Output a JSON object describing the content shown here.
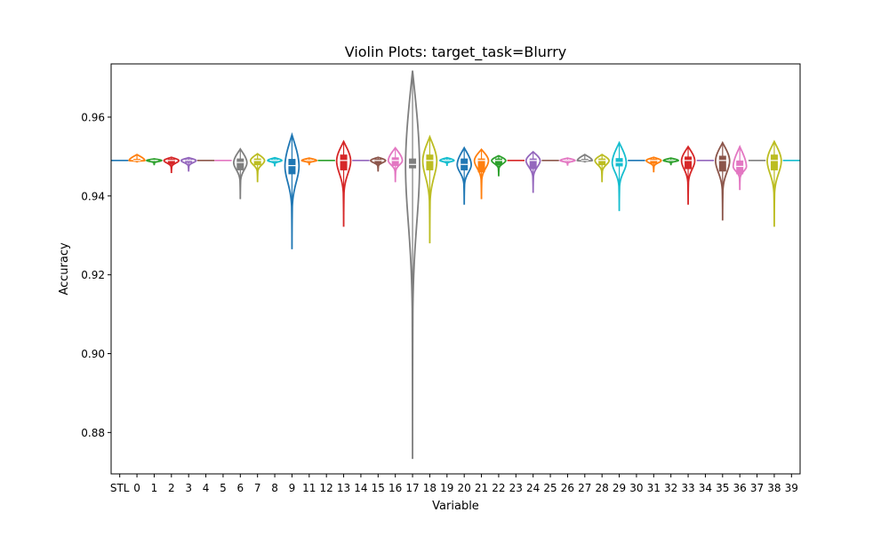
{
  "chart_data": {
    "type": "violin",
    "title": "Violin Plots: target_task=Blurry",
    "xlabel": "Variable",
    "ylabel": "Accuracy",
    "ylim": [
      0.8695,
      0.9735
    ],
    "yticks": [
      0.88,
      0.9,
      0.92,
      0.94,
      0.96
    ],
    "ytick_labels": [
      "0.88",
      "0.90",
      "0.92",
      "0.94",
      "0.96"
    ],
    "grid": false,
    "palette": [
      "#1f77b4",
      "#ff7f0e",
      "#2ca02c",
      "#d62728",
      "#9467bd",
      "#8c564b",
      "#e377c2",
      "#7f7f7f",
      "#bcbd22",
      "#17becf"
    ],
    "categories": [
      "STL",
      "0",
      "1",
      "2",
      "3",
      "4",
      "5",
      "6",
      "7",
      "8",
      "9",
      "11",
      "12",
      "13",
      "14",
      "15",
      "16",
      "17",
      "18",
      "19",
      "20",
      "21",
      "22",
      "23",
      "24",
      "25",
      "26",
      "27",
      "28",
      "29",
      "30",
      "31",
      "32",
      "33",
      "34",
      "35",
      "36",
      "37",
      "38",
      "39"
    ],
    "series": [
      {
        "category": "STL",
        "min": 0.949,
        "max": 0.949,
        "median": 0.949,
        "q1": 0.949,
        "q3": 0.949,
        "width": 0
      },
      {
        "category": "0",
        "min": 0.9485,
        "max": 0.9505,
        "median": 0.949,
        "q1": 0.9489,
        "q3": 0.9494,
        "width": 0.45
      },
      {
        "category": "1",
        "min": 0.9478,
        "max": 0.9494,
        "median": 0.949,
        "q1": 0.9488,
        "q3": 0.9491,
        "width": 0.4
      },
      {
        "category": "2",
        "min": 0.9458,
        "max": 0.9498,
        "median": 0.949,
        "q1": 0.948,
        "q3": 0.9494,
        "width": 0.4
      },
      {
        "category": "3",
        "min": 0.9462,
        "max": 0.9497,
        "median": 0.949,
        "q1": 0.9484,
        "q3": 0.9493,
        "width": 0.4
      },
      {
        "category": "4",
        "min": 0.949,
        "max": 0.949,
        "median": 0.949,
        "q1": 0.949,
        "q3": 0.949,
        "width": 0
      },
      {
        "category": "5",
        "min": 0.949,
        "max": 0.949,
        "median": 0.949,
        "q1": 0.949,
        "q3": 0.949,
        "width": 0
      },
      {
        "category": "6",
        "min": 0.9392,
        "max": 0.9519,
        "median": 0.9485,
        "q1": 0.9465,
        "q3": 0.9495,
        "width": 0.3
      },
      {
        "category": "7",
        "min": 0.9435,
        "max": 0.9507,
        "median": 0.949,
        "q1": 0.9478,
        "q3": 0.9495,
        "width": 0.35
      },
      {
        "category": "8",
        "min": 0.9475,
        "max": 0.9497,
        "median": 0.949,
        "q1": 0.9486,
        "q3": 0.9493,
        "width": 0.35
      },
      {
        "category": "9",
        "min": 0.9265,
        "max": 0.9555,
        "median": 0.9477,
        "q1": 0.9455,
        "q3": 0.9494,
        "width": 0.35
      },
      {
        "category": "11",
        "min": 0.9478,
        "max": 0.9496,
        "median": 0.949,
        "q1": 0.9487,
        "q3": 0.9492,
        "width": 0.4
      },
      {
        "category": "12",
        "min": 0.949,
        "max": 0.949,
        "median": 0.949,
        "q1": 0.949,
        "q3": 0.949,
        "width": 0
      },
      {
        "category": "13",
        "min": 0.9322,
        "max": 0.9538,
        "median": 0.949,
        "q1": 0.9465,
        "q3": 0.9505,
        "width": 0.35
      },
      {
        "category": "14",
        "min": 0.949,
        "max": 0.949,
        "median": 0.949,
        "q1": 0.949,
        "q3": 0.949,
        "width": 0
      },
      {
        "category": "15",
        "min": 0.9462,
        "max": 0.9498,
        "median": 0.949,
        "q1": 0.9481,
        "q3": 0.9494,
        "width": 0.4
      },
      {
        "category": "16",
        "min": 0.9435,
        "max": 0.9522,
        "median": 0.949,
        "q1": 0.9476,
        "q3": 0.9498,
        "width": 0.35
      },
      {
        "category": "17",
        "min": 0.8733,
        "max": 0.9718,
        "median": 0.948,
        "q1": 0.947,
        "q3": 0.9495,
        "width": 0.35
      },
      {
        "category": "18",
        "min": 0.928,
        "max": 0.955,
        "median": 0.949,
        "q1": 0.9465,
        "q3": 0.9505,
        "width": 0.35
      },
      {
        "category": "19",
        "min": 0.9476,
        "max": 0.9497,
        "median": 0.949,
        "q1": 0.9486,
        "q3": 0.9493,
        "width": 0.35
      },
      {
        "category": "20",
        "min": 0.9378,
        "max": 0.9522,
        "median": 0.948,
        "q1": 0.9465,
        "q3": 0.9495,
        "width": 0.35
      },
      {
        "category": "21",
        "min": 0.9392,
        "max": 0.9518,
        "median": 0.949,
        "q1": 0.946,
        "q3": 0.9495,
        "width": 0.35
      },
      {
        "category": "22",
        "min": 0.945,
        "max": 0.9502,
        "median": 0.949,
        "q1": 0.9478,
        "q3": 0.9495,
        "width": 0.35
      },
      {
        "category": "23",
        "min": 0.949,
        "max": 0.949,
        "median": 0.949,
        "q1": 0.949,
        "q3": 0.949,
        "width": 0
      },
      {
        "category": "24",
        "min": 0.9408,
        "max": 0.9512,
        "median": 0.949,
        "q1": 0.9468,
        "q3": 0.9495,
        "width": 0.35
      },
      {
        "category": "25",
        "min": 0.949,
        "max": 0.949,
        "median": 0.949,
        "q1": 0.949,
        "q3": 0.949,
        "width": 0
      },
      {
        "category": "26",
        "min": 0.9477,
        "max": 0.9496,
        "median": 0.949,
        "q1": 0.9487,
        "q3": 0.9492,
        "width": 0.4
      },
      {
        "category": "27",
        "min": 0.9485,
        "max": 0.9505,
        "median": 0.949,
        "q1": 0.9488,
        "q3": 0.9494,
        "width": 0.4
      },
      {
        "category": "28",
        "min": 0.9435,
        "max": 0.9505,
        "median": 0.949,
        "q1": 0.9478,
        "q3": 0.9495,
        "width": 0.35
      },
      {
        "category": "29",
        "min": 0.9362,
        "max": 0.9535,
        "median": 0.9485,
        "q1": 0.9475,
        "q3": 0.9496,
        "width": 0.35
      },
      {
        "category": "30",
        "min": 0.949,
        "max": 0.949,
        "median": 0.949,
        "q1": 0.949,
        "q3": 0.949,
        "width": 0
      },
      {
        "category": "31",
        "min": 0.946,
        "max": 0.9498,
        "median": 0.949,
        "q1": 0.9482,
        "q3": 0.9494,
        "width": 0.4
      },
      {
        "category": "32",
        "min": 0.9478,
        "max": 0.9496,
        "median": 0.949,
        "q1": 0.9487,
        "q3": 0.9492,
        "width": 0.4
      },
      {
        "category": "33",
        "min": 0.9378,
        "max": 0.9525,
        "median": 0.949,
        "q1": 0.9468,
        "q3": 0.95,
        "width": 0.3
      },
      {
        "category": "34",
        "min": 0.949,
        "max": 0.949,
        "median": 0.949,
        "q1": 0.949,
        "q3": 0.949,
        "width": 0
      },
      {
        "category": "35",
        "min": 0.9338,
        "max": 0.9535,
        "median": 0.949,
        "q1": 0.9462,
        "q3": 0.9502,
        "width": 0.35
      },
      {
        "category": "36",
        "min": 0.9415,
        "max": 0.9525,
        "median": 0.9475,
        "q1": 0.9455,
        "q3": 0.949,
        "width": 0.3
      },
      {
        "category": "37",
        "min": 0.949,
        "max": 0.949,
        "median": 0.949,
        "q1": 0.949,
        "q3": 0.949,
        "width": 0
      },
      {
        "category": "38",
        "min": 0.9322,
        "max": 0.9538,
        "median": 0.949,
        "q1": 0.9465,
        "q3": 0.9505,
        "width": 0.35
      },
      {
        "category": "39",
        "min": 0.949,
        "max": 0.949,
        "median": 0.949,
        "q1": 0.949,
        "q3": 0.949,
        "width": 0
      }
    ]
  }
}
